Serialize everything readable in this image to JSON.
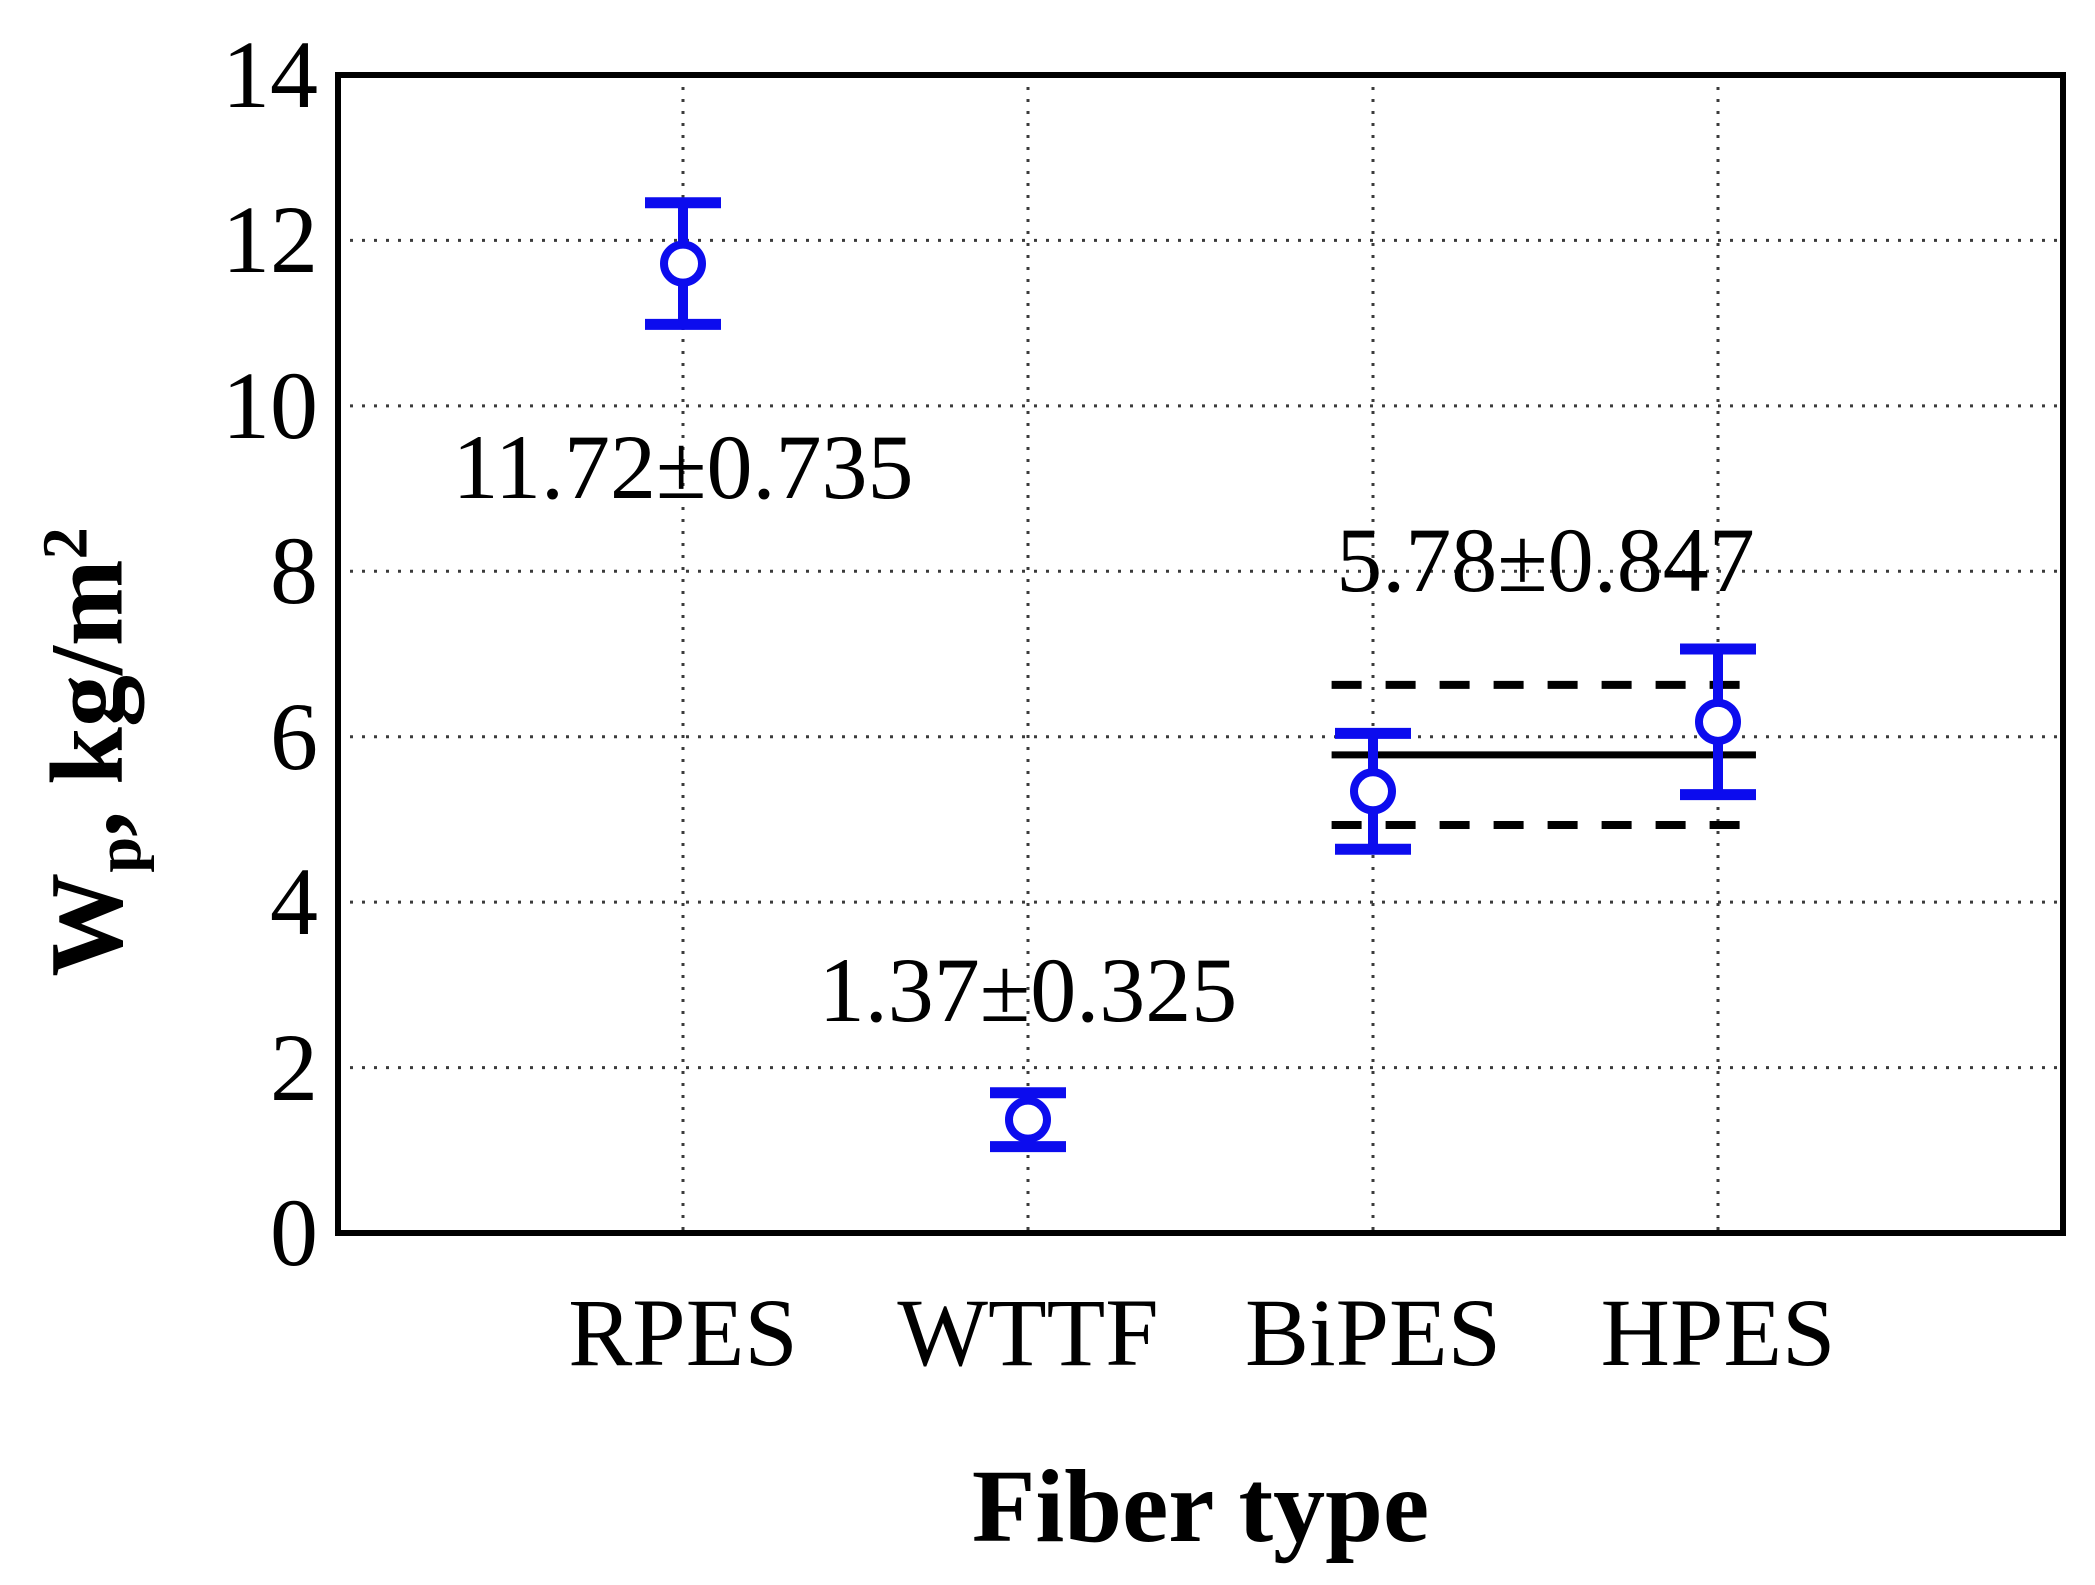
{
  "page": {
    "background": "#ffffff",
    "text_color": "#000000"
  },
  "chart_data": {
    "type": "scatter",
    "title": "",
    "xlabel": "Fiber type",
    "ylabel": "Wp, kg/m2",
    "ylabel_parts": {
      "symbol": "W",
      "subscript": "p",
      "units": ", kg/m",
      "superscript": "2"
    },
    "categories": [
      "RPES",
      "WTTF",
      "BiPES",
      "HPES"
    ],
    "series": [
      {
        "name": "Wp",
        "marker": "open-circle",
        "color": "#0c0cee",
        "values": [
          11.72,
          1.37,
          5.34,
          6.18
        ],
        "errors": [
          0.735,
          0.325,
          0.7,
          0.88
        ]
      }
    ],
    "ylim": [
      0,
      14
    ],
    "yticks": [
      0,
      2,
      4,
      6,
      8,
      10,
      12,
      14
    ],
    "grid": {
      "horizontal": "dotted",
      "vertical": "dotted-at-categories",
      "color": "#3b3b3b"
    },
    "legend": "none",
    "annotations": [
      {
        "text": "11.72±0.735",
        "x_category": 1,
        "y_value": 9.26
      },
      {
        "text": "1.37±0.325",
        "x_category": 2,
        "y_value": 2.94
      },
      {
        "text": "5.78±0.847",
        "x_category": 3.5,
        "y_value": 8.14
      }
    ],
    "reference_lines": {
      "mean": 5.78,
      "sd": 0.847,
      "from_category": 2.88,
      "to_category": 4.11,
      "mean_style": "solid-black",
      "band_style": "dashed-black"
    }
  }
}
